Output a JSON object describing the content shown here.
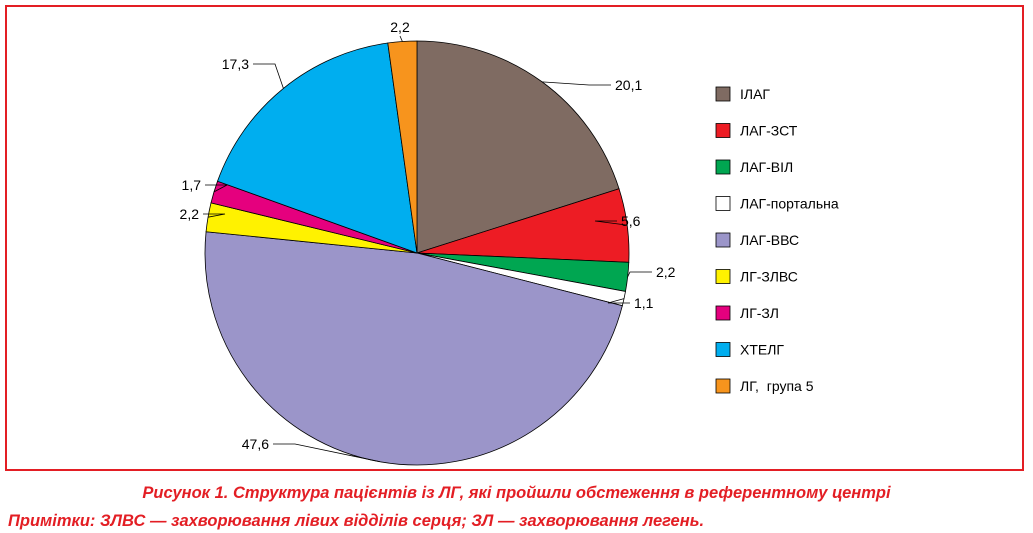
{
  "chart_data": {
    "type": "pie",
    "slices": [
      {
        "label": "ІЛАГ",
        "value": 20.1,
        "value_label": "20,1",
        "color": "#7f6b62"
      },
      {
        "label": "ЛАГ-ЗСТ",
        "value": 5.6,
        "value_label": "5,6",
        "color": "#ed1c24"
      },
      {
        "label": "ЛАГ-ВІЛ",
        "value": 2.2,
        "value_label": "2,2",
        "color": "#00a651"
      },
      {
        "label": "ЛАГ-портальна",
        "value": 1.1,
        "value_label": "1,1",
        "color": "#ffffff"
      },
      {
        "label": "ЛАГ-ВВС",
        "value": 47.6,
        "value_label": "47,6",
        "color": "#9b95c9"
      },
      {
        "label": "ЛГ-ЗЛВС",
        "value": 2.2,
        "value_label": "2,2",
        "color": "#fff200"
      },
      {
        "label": "ЛГ-ЗЛ",
        "value": 1.7,
        "value_label": "1,7",
        "color": "#e5007e"
      },
      {
        "label": "ХТЕЛГ",
        "value": 17.3,
        "value_label": "17,3",
        "color": "#00aeef"
      },
      {
        "label": "ЛГ,  група 5",
        "value": 2.2,
        "value_label": "2,2",
        "color": "#f7941d"
      }
    ],
    "legend_position": "right"
  },
  "caption": {
    "title": "Рисунок 1. Структура пацієнтів із ЛГ, які пройшли обстеження в референтному центрі",
    "note": "Примітки: ЗЛВС — захворювання лівих відділів серця; ЗЛ — захворювання легень."
  }
}
